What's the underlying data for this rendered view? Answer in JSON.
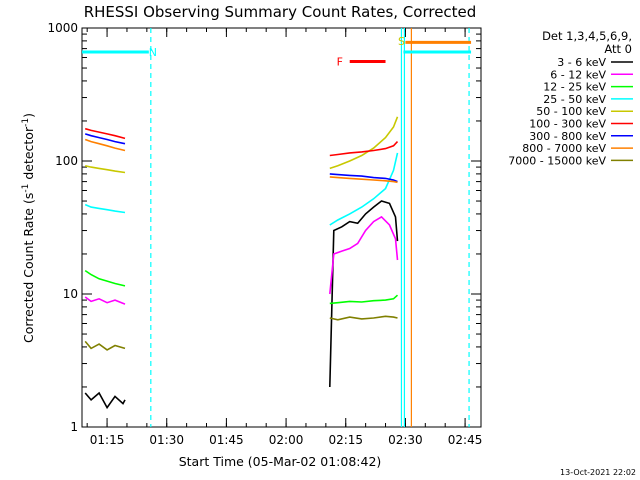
{
  "chart_data": {
    "type": "line",
    "title": "RHESSI Observing Summary Count Rates, Corrected",
    "xlabel": "Start Time (05-Mar-02 01:08:42)",
    "ylabel": "Corrected Count Rate (s",
    "ylabel_sup": "-1",
    "ylabel_tail": " detector",
    "ylabel_close": ")",
    "y_scale": "log",
    "ylim": [
      1,
      1000
    ],
    "xlim": [
      "01:08:42",
      "02:49:00"
    ],
    "x_ticks": [
      "01:15",
      "01:30",
      "01:45",
      "02:00",
      "02:15",
      "02:30",
      "02:45"
    ],
    "y_ticks": [
      "1",
      "10",
      "100",
      "1000"
    ],
    "legend_header": [
      "Det 1,3,4,5,6,9,",
      "Att 0"
    ],
    "legend_position": "right",
    "footer_date": "13-Oct-2021 22:02",
    "flags": [
      {
        "label": "N",
        "color": "#00ffff",
        "x_start": "01:08:42",
        "x_end": "01:25:30",
        "level": 660
      },
      {
        "label": "N",
        "color": "#00ffff",
        "x_start": "02:29:30",
        "x_end": "02:46:30",
        "level": 660
      },
      {
        "label": "F",
        "color": "#ff0000",
        "x_start": "02:16:00",
        "x_end": "02:25:00",
        "level": 560
      },
      {
        "label": "S",
        "color": "#ff8000",
        "x_start": "02:30:00",
        "x_end": "02:46:30",
        "level": 780
      }
    ],
    "flag_labels": [
      {
        "text": "N",
        "color": "#00ffff",
        "x": "01:26:30",
        "level": 660
      },
      {
        "text": "F",
        "color": "#ff0000",
        "x": "02:13:30",
        "level": 560
      },
      {
        "text": "S",
        "color": "#c8c800",
        "x": "02:29:00",
        "level": 800
      }
    ],
    "vlines": [
      {
        "x": "01:26:00",
        "color": "#00ffff",
        "dashed": true
      },
      {
        "x": "02:29:00",
        "color": "#00ffff",
        "dashed": false
      },
      {
        "x": "02:29:45",
        "color": "#00ffff",
        "dashed": false
      },
      {
        "x": "02:31:30",
        "color": "#ff8000",
        "dashed": false
      },
      {
        "x": "02:46:00",
        "color": "#00ffff",
        "dashed": true
      }
    ],
    "series": [
      {
        "name": "3 - 6 keV",
        "color": "#000000",
        "segments": [
          {
            "x": [
              "01:09:30",
              "01:11:00",
              "01:13:00",
              "01:15:00",
              "01:17:00",
              "01:19:00",
              "01:19:30"
            ],
            "y": [
              1.8,
              1.6,
              1.8,
              1.4,
              1.7,
              1.5,
              1.6
            ]
          },
          {
            "x": [
              "02:11:00",
              "02:12:00",
              "02:14:00",
              "02:16:00",
              "02:18:00",
              "02:20:00",
              "02:22:00",
              "02:24:00",
              "02:26:00",
              "02:27:30",
              "02:28:00"
            ],
            "y": [
              2,
              30,
              32,
              35,
              34,
              40,
              45,
              50,
              48,
              38,
              25
            ]
          }
        ]
      },
      {
        "name": "6 - 12 keV",
        "color": "#ff00ff",
        "segments": [
          {
            "x": [
              "01:09:30",
              "01:11:00",
              "01:13:00",
              "01:15:00",
              "01:17:00",
              "01:19:30"
            ],
            "y": [
              9.5,
              8.8,
              9.2,
              8.6,
              9,
              8.4
            ]
          },
          {
            "x": [
              "02:11:00",
              "02:12:00",
              "02:14:00",
              "02:16:00",
              "02:18:00",
              "02:20:00",
              "02:22:00",
              "02:24:00",
              "02:26:00",
              "02:27:30",
              "02:28:00"
            ],
            "y": [
              10,
              20,
              21,
              22,
              24,
              30,
              35,
              38,
              33,
              26,
              18
            ]
          }
        ]
      },
      {
        "name": "12 - 25 keV",
        "color": "#00ff00",
        "segments": [
          {
            "x": [
              "01:09:30",
              "01:11:00",
              "01:13:00",
              "01:15:00",
              "01:17:00",
              "01:19:30"
            ],
            "y": [
              15,
              14,
              13,
              12.5,
              12,
              11.5
            ]
          },
          {
            "x": [
              "02:11:00",
              "02:13:00",
              "02:16:00",
              "02:19:00",
              "02:22:00",
              "02:25:00",
              "02:27:00",
              "02:28:00"
            ],
            "y": [
              8.5,
              8.6,
              8.8,
              8.7,
              8.9,
              9,
              9.2,
              9.8
            ]
          }
        ]
      },
      {
        "name": "25 - 50 keV",
        "color": "#00ffff",
        "segments": [
          {
            "x": [
              "01:09:30",
              "01:11:00",
              "01:13:00",
              "01:15:00",
              "01:17:00",
              "01:19:30"
            ],
            "y": [
              47,
              45,
              44,
              43,
              42,
              41
            ]
          },
          {
            "x": [
              "02:11:00",
              "02:13:00",
              "02:16:00",
              "02:19:00",
              "02:22:00",
              "02:25:00",
              "02:27:00",
              "02:28:00"
            ],
            "y": [
              33,
              36,
              40,
              45,
              52,
              62,
              85,
              115
            ]
          }
        ]
      },
      {
        "name": "50 - 100 keV",
        "color": "#c8c800",
        "segments": [
          {
            "x": [
              "01:09:30",
              "01:11:00",
              "01:13:00",
              "01:15:00",
              "01:17:00",
              "01:19:30"
            ],
            "y": [
              92,
              90,
              88,
              86,
              84,
              82
            ]
          },
          {
            "x": [
              "02:11:00",
              "02:13:00",
              "02:16:00",
              "02:19:00",
              "02:22:00",
              "02:25:00",
              "02:27:00",
              "02:28:00"
            ],
            "y": [
              88,
              92,
              100,
              110,
              125,
              150,
              180,
              215
            ]
          }
        ]
      },
      {
        "name": "100 - 300 keV",
        "color": "#ff0000",
        "segments": [
          {
            "x": [
              "01:09:30",
              "01:11:00",
              "01:13:00",
              "01:15:00",
              "01:17:00",
              "01:19:30"
            ],
            "y": [
              175,
              170,
              165,
              160,
              155,
              148
            ]
          },
          {
            "x": [
              "02:11:00",
              "02:13:00",
              "02:16:00",
              "02:19:00",
              "02:22:00",
              "02:25:00",
              "02:27:00",
              "02:28:00"
            ],
            "y": [
              110,
              112,
              115,
              117,
              120,
              124,
              130,
              140
            ]
          }
        ]
      },
      {
        "name": "300 - 800 keV",
        "color": "#0000ff",
        "segments": [
          {
            "x": [
              "01:09:30",
              "01:11:00",
              "01:13:00",
              "01:15:00",
              "01:17:00",
              "01:19:30"
            ],
            "y": [
              160,
              155,
              150,
              145,
              140,
              135
            ]
          },
          {
            "x": [
              "02:11:00",
              "02:13:00",
              "02:16:00",
              "02:19:00",
              "02:22:00",
              "02:25:00",
              "02:27:00",
              "02:28:00"
            ],
            "y": [
              80,
              79,
              78,
              77,
              75,
              74,
              72,
              70
            ]
          }
        ]
      },
      {
        "name": "800 - 7000 keV",
        "color": "#ff8000",
        "segments": [
          {
            "x": [
              "01:09:30",
              "01:11:00",
              "01:13:00",
              "01:15:00",
              "01:17:00",
              "01:19:30"
            ],
            "y": [
              145,
              140,
              135,
              130,
              125,
              120
            ]
          },
          {
            "x": [
              "02:11:00",
              "02:13:00",
              "02:16:00",
              "02:19:00",
              "02:22:00",
              "02:25:00",
              "02:27:00",
              "02:28:00"
            ],
            "y": [
              76,
              75,
              74,
              73,
              72,
              71,
              70,
              69
            ]
          }
        ]
      },
      {
        "name": "7000 - 15000 keV",
        "color": "#808000",
        "segments": [
          {
            "x": [
              "01:09:30",
              "01:11:00",
              "01:13:00",
              "01:15:00",
              "01:17:00",
              "01:19:30"
            ],
            "y": [
              4.4,
              3.9,
              4.2,
              3.8,
              4.1,
              3.9
            ]
          },
          {
            "x": [
              "02:11:00",
              "02:13:00",
              "02:16:00",
              "02:19:00",
              "02:22:00",
              "02:25:00",
              "02:27:00",
              "02:28:00"
            ],
            "y": [
              6.6,
              6.4,
              6.7,
              6.5,
              6.6,
              6.8,
              6.7,
              6.6
            ]
          }
        ]
      }
    ]
  }
}
